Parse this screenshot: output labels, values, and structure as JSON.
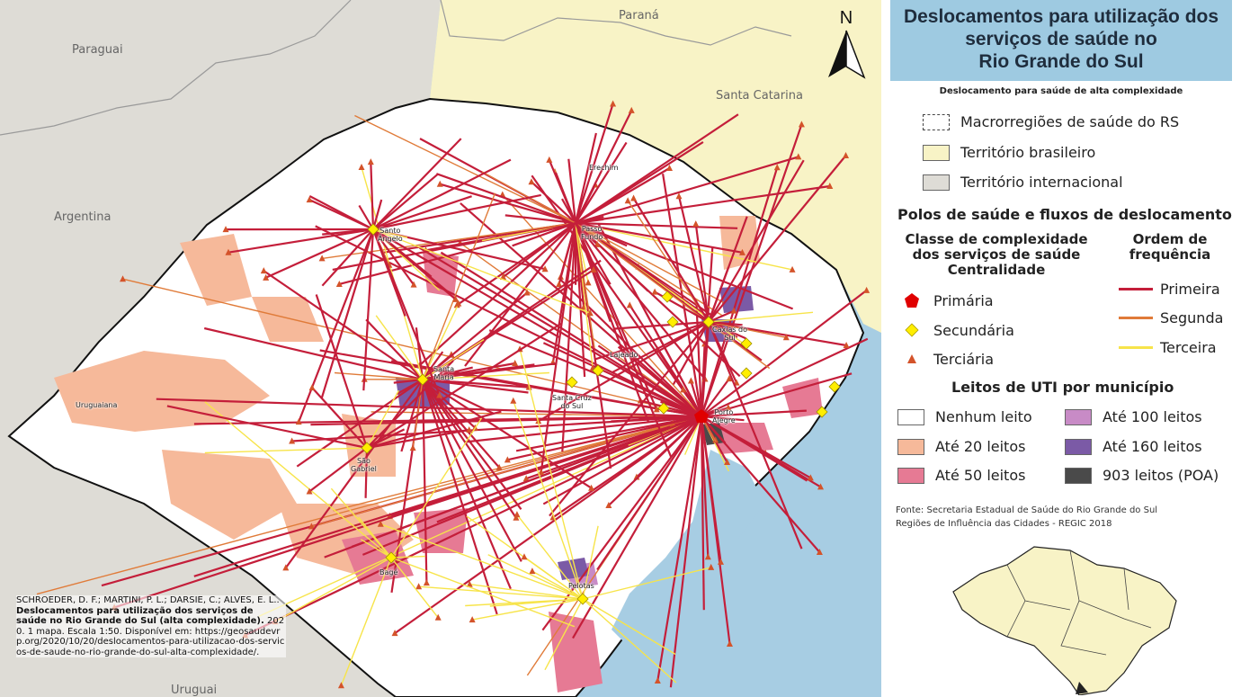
{
  "map": {
    "neighbor_labels": {
      "paraguai": "Paraguai",
      "parana": "Paraná",
      "santa_catarina": "Santa Catarina",
      "argentina": "Argentina",
      "uruguai": "Uruguai"
    },
    "north_label": "N",
    "cities": {
      "santo_angelo": "Santo\nÂngelo",
      "passo_fundo": "Passo\nFundo",
      "erechim": "Erechim",
      "caxias_do_sul": "Caxias do\nSul",
      "lajeado": "Lajeado",
      "santa_maria": "Santa\nMaria",
      "santa_cruz_do_sul": "Santa Cruz\ndo Sul",
      "porto_alegre": "Porto\nAlegre",
      "uruguaiana": "Uruguaiana",
      "sao_gabriel": "São\nGabriel",
      "bage": "Bagé",
      "pelotas": "Pelotas"
    },
    "colors": {
      "ocean": "#a7cde3",
      "brazil": "#f8f3c6",
      "international": "#dedcd6",
      "none": "#ffffff",
      "up20": "#f6b99a",
      "up50": "#e67a94",
      "up100": "#c88bc6",
      "up160": "#7b5aa6",
      "poa": "#4a4a4a",
      "flow_primary": "#c41e3a",
      "flow_secondary": "#e07b39",
      "flow_tertiary": "#f7e44a"
    }
  },
  "citation": {
    "authors": "SCHROEDER, D. F.; MARTINI, P. L.; DARSIE, C.; ALVES, E. L.. ",
    "title": "Deslocamentos para utilização dos serviços de saúde no Rio Grande do Sul (alta complexidade).",
    "details": " 2020. 1 mapa. Escala 1:50. Disponível em: https://geosaudevrp.org/2020/10/20/deslocamentos-para-utilizacao-dos-servicos-de-saude-no-rio-grande-do-sul-alta-complexidade/."
  },
  "legend": {
    "title_line1": "Deslocamentos para utilização dos",
    "title_line2": "serviços de saúde no",
    "title_line3": "Rio Grande do Sul",
    "subtitle": "Deslocamento para saúde de alta complexidade",
    "boundaries": {
      "macro": "Macrorregiões de saúde do RS",
      "brazil": "Território brasileiro",
      "international": "Território internacional"
    },
    "poles_heading": "Polos de saúde e fluxos de deslocamento",
    "class_heading": "Classe de complexidade dos serviços de saúde Centralidade",
    "order_heading": "Ordem de frequência",
    "classes": {
      "primary": "Primária",
      "secondary": "Secundária",
      "tertiary": "Terciária"
    },
    "orders": {
      "first": "Primeira",
      "second": "Segunda",
      "third": "Terceira"
    },
    "icu_heading": "Leitos de UTI por município",
    "icu": {
      "none": "Nenhum leito",
      "up20": "Até 20 leitos",
      "up50": "Até 50 leitos",
      "up100": "Até 100 leitos",
      "up160": "Até 160 leitos",
      "poa": "903 leitos (POA)"
    },
    "source_line1": "Fonte: Secretaria Estadual de Saúde do Rio Grande do Sul",
    "source_line2": "Regiões de Influência das Cidades - REGIC 2018"
  }
}
